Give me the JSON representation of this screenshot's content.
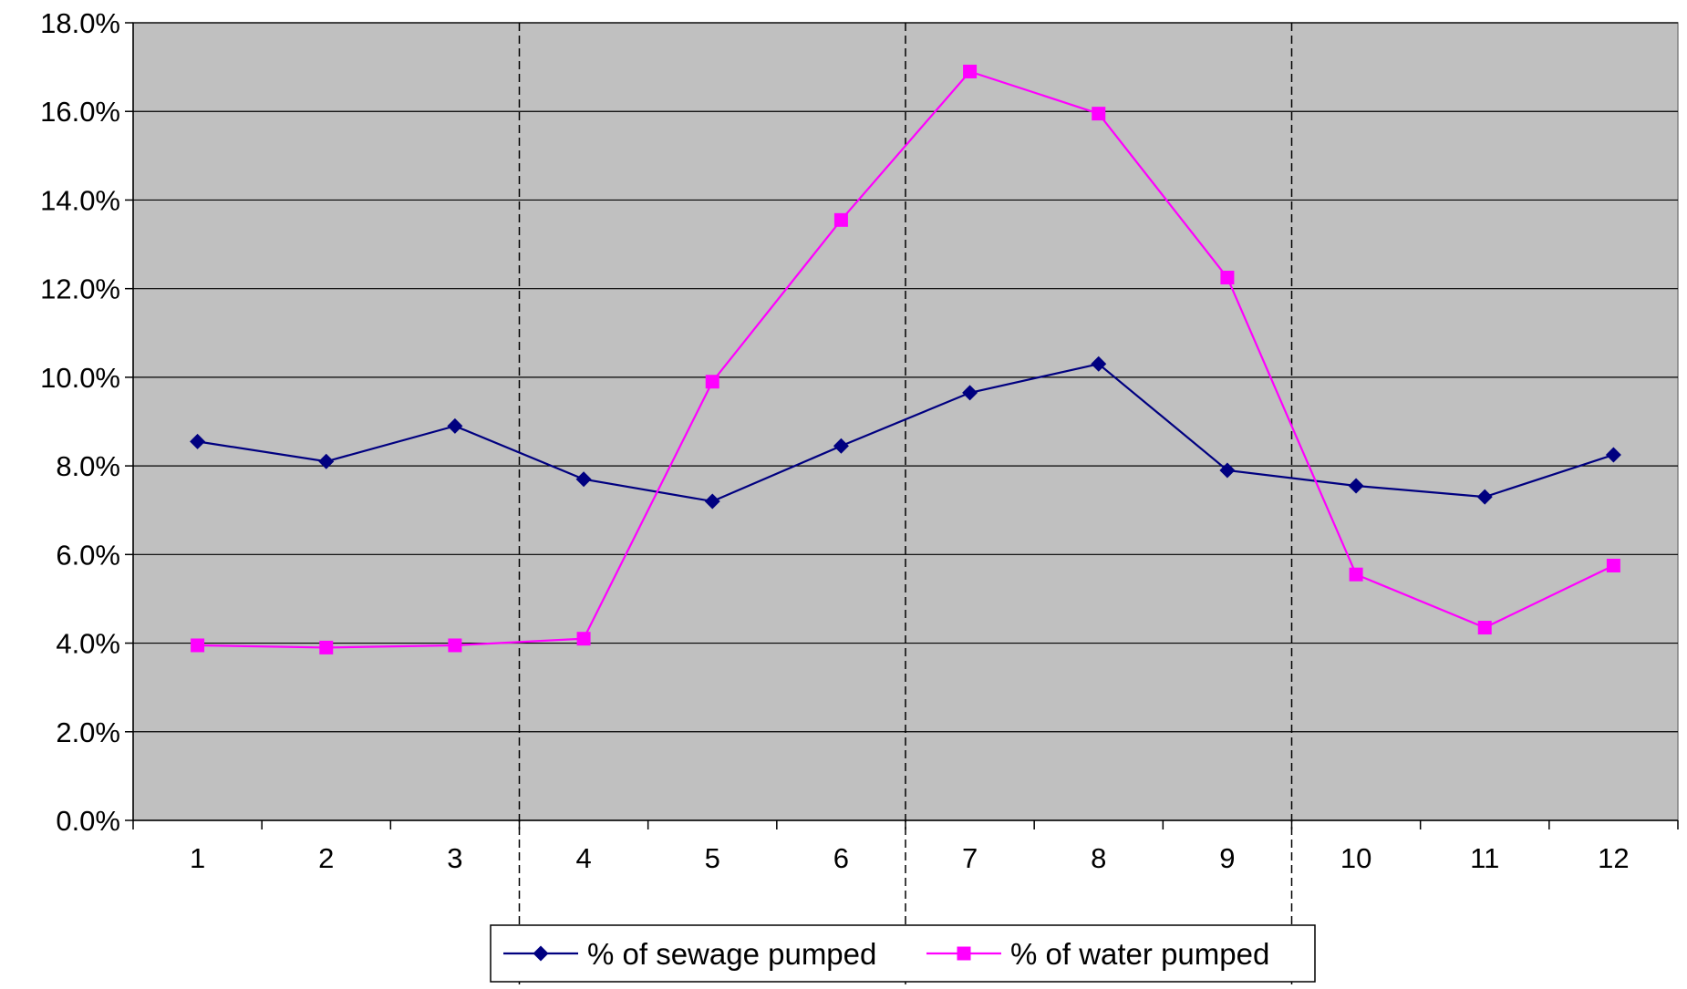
{
  "chart_data": {
    "type": "line",
    "title": "",
    "xlabel": "",
    "ylabel": "",
    "categories": [
      "1",
      "2",
      "3",
      "4",
      "5",
      "6",
      "7",
      "8",
      "9",
      "10",
      "11",
      "12"
    ],
    "ylim": [
      0,
      18
    ],
    "yticks": [
      0,
      2,
      4,
      6,
      8,
      10,
      12,
      14,
      16,
      18
    ],
    "ytick_labels": [
      "0.0%",
      "2.0%",
      "4.0%",
      "6.0%",
      "8.0%",
      "10.0%",
      "12.0%",
      "14.0%",
      "16.0%",
      "18.0%"
    ],
    "grid": "horizontal",
    "plot_background": "#C0C0C0",
    "separator_lines_after_category": [
      3,
      6,
      9
    ],
    "legend_placement": "bottom",
    "series": [
      {
        "name": "% of sewage pumped",
        "color": "#000080",
        "marker": "diamond",
        "values": [
          8.55,
          8.1,
          8.9,
          7.7,
          7.2,
          8.45,
          9.65,
          10.3,
          7.9,
          7.55,
          7.3,
          8.25
        ]
      },
      {
        "name": "% of water pumped",
        "color": "#FF00FF",
        "marker": "square",
        "values": [
          3.95,
          3.9,
          3.95,
          4.1,
          9.9,
          13.55,
          16.9,
          15.95,
          12.25,
          5.55,
          4.35,
          5.75
        ]
      }
    ]
  }
}
